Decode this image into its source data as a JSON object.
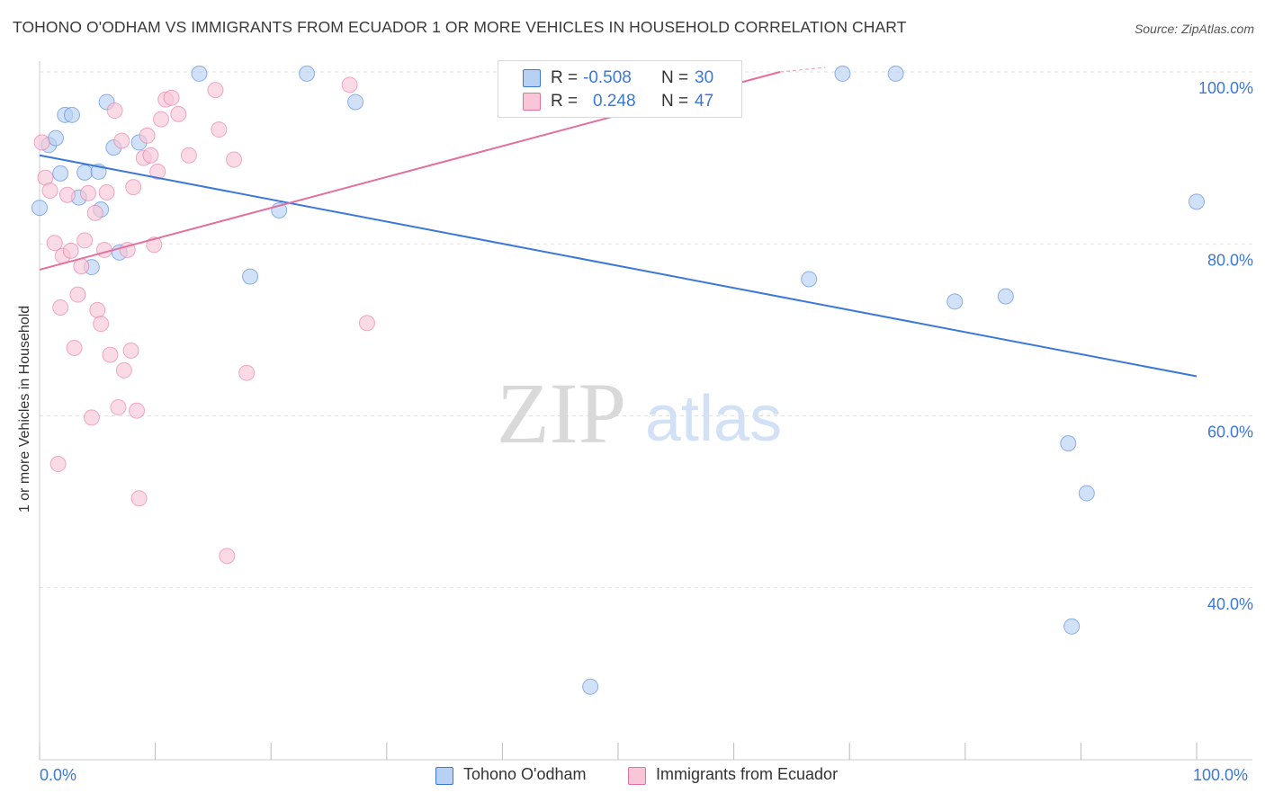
{
  "title": "TOHONO O'ODHAM VS IMMIGRANTS FROM ECUADOR 1 OR MORE VEHICLES IN HOUSEHOLD CORRELATION CHART",
  "source": "Source: ZipAtlas.com",
  "watermark": {
    "zip": "ZIP",
    "atlas": "atlas"
  },
  "legend_stats": [
    {
      "r_label": "R =",
      "r_value": "-0.508",
      "n_label": "N =",
      "n_value": "30"
    },
    {
      "r_label": "R =",
      "r_value": "0.248",
      "n_label": "N =",
      "n_value": "47"
    }
  ],
  "colors": {
    "blue": "#3c78d8",
    "blue_fill": "#b8d1f3",
    "pink": "#e36f9c",
    "pink_fill": "#f8c6d6",
    "grid": "#e2e2e2"
  },
  "chart_data": {
    "type": "scatter",
    "ylabel": "1 or more Vehicles in Household",
    "xlim": [
      0,
      100
    ],
    "ylim": [
      20,
      100
    ],
    "x_tick_labels": [
      "0.0%",
      "100.0%"
    ],
    "y_ticks": [
      40,
      60,
      80,
      100
    ],
    "y_tick_labels": [
      "40.0%",
      "60.0%",
      "80.0%",
      "100.0%"
    ],
    "grid": true,
    "series": [
      {
        "name": "Tohono O'odham",
        "color": "#3c78d8",
        "trend": {
          "x": [
            0,
            100
          ],
          "y": [
            90.3,
            64.6
          ]
        },
        "points": [
          [
            0.0,
            84.2
          ],
          [
            0.8,
            91.5
          ],
          [
            1.4,
            92.3
          ],
          [
            1.8,
            88.2
          ],
          [
            2.2,
            95.0
          ],
          [
            2.8,
            95.0
          ],
          [
            3.4,
            85.4
          ],
          [
            3.9,
            88.3
          ],
          [
            4.5,
            77.3
          ],
          [
            5.1,
            88.4
          ],
          [
            5.3,
            84.0
          ],
          [
            5.8,
            96.5
          ],
          [
            6.4,
            91.2
          ],
          [
            6.9,
            79.0
          ],
          [
            8.6,
            91.8
          ],
          [
            13.8,
            99.8
          ],
          [
            18.2,
            76.2
          ],
          [
            20.7,
            83.9
          ],
          [
            23.1,
            99.8
          ],
          [
            27.3,
            96.5
          ],
          [
            47.6,
            28.5
          ],
          [
            66.5,
            75.9
          ],
          [
            69.4,
            99.8
          ],
          [
            74.0,
            99.8
          ],
          [
            79.1,
            73.3
          ],
          [
            83.5,
            73.9
          ],
          [
            88.9,
            56.8
          ],
          [
            89.2,
            35.5
          ],
          [
            90.5,
            51.0
          ],
          [
            100.0,
            84.9
          ]
        ]
      },
      {
        "name": "Immigrants from Ecuador",
        "color": "#e36f9c",
        "trend": {
          "x": [
            0,
            64
          ],
          "y": [
            77.0,
            100.0
          ]
        },
        "points": [
          [
            0.2,
            91.8
          ],
          [
            0.5,
            87.7
          ],
          [
            0.9,
            86.2
          ],
          [
            1.3,
            80.1
          ],
          [
            1.6,
            54.4
          ],
          [
            1.8,
            72.6
          ],
          [
            2.0,
            78.6
          ],
          [
            2.4,
            85.7
          ],
          [
            2.7,
            79.2
          ],
          [
            3.0,
            67.9
          ],
          [
            3.3,
            74.1
          ],
          [
            3.6,
            77.4
          ],
          [
            3.9,
            80.4
          ],
          [
            4.2,
            85.9
          ],
          [
            4.5,
            59.8
          ],
          [
            4.8,
            83.6
          ],
          [
            5.0,
            72.3
          ],
          [
            5.3,
            70.7
          ],
          [
            5.6,
            79.3
          ],
          [
            5.8,
            86.0
          ],
          [
            6.1,
            67.1
          ],
          [
            6.5,
            95.5
          ],
          [
            6.8,
            61.0
          ],
          [
            7.1,
            92.0
          ],
          [
            7.3,
            65.3
          ],
          [
            7.6,
            79.3
          ],
          [
            7.9,
            67.6
          ],
          [
            8.1,
            86.6
          ],
          [
            8.4,
            60.6
          ],
          [
            8.6,
            50.4
          ],
          [
            9.0,
            90.0
          ],
          [
            9.3,
            92.6
          ],
          [
            9.6,
            90.3
          ],
          [
            9.9,
            79.9
          ],
          [
            10.2,
            88.4
          ],
          [
            10.5,
            94.5
          ],
          [
            10.9,
            96.8
          ],
          [
            11.4,
            97.0
          ],
          [
            12.0,
            95.1
          ],
          [
            12.9,
            90.3
          ],
          [
            15.2,
            97.9
          ],
          [
            15.5,
            93.3
          ],
          [
            16.2,
            43.7
          ],
          [
            16.8,
            89.8
          ],
          [
            17.9,
            65.0
          ],
          [
            26.8,
            98.5
          ],
          [
            28.3,
            70.8
          ]
        ]
      }
    ]
  }
}
